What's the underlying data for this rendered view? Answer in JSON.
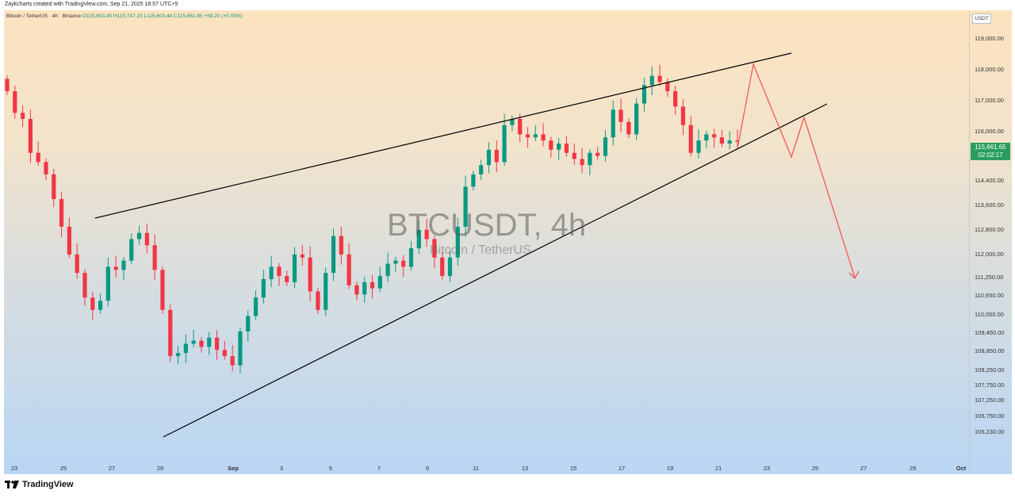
{
  "credit": "Zaykcharts created with TradingView.com, Sep 21, 2025 18:57 UTC+5",
  "legend": {
    "symbol": "Bitcoin / TetherUS · 4h · Binance",
    "ohlc": "O115,603.45 H115,747.23 L115,603.44 C115,661.65 +58.20 (+0.05%)"
  },
  "currency": "USDT",
  "last_price": "115,661.65",
  "countdown": "02:02:17",
  "watermark": {
    "main": "BTCUSDT, 4h",
    "sub": "Bitcoin / TetherUS"
  },
  "brand": "TradingView",
  "colors": {
    "up": "#089981",
    "down": "#f23645",
    "projection": "#f05a5a",
    "trendline": "#000000"
  },
  "chart_data": {
    "type": "candlestick",
    "symbol": "BTCUSDT",
    "interval": "4h",
    "y_ticks": [
      "119,000.00",
      "118,000.00",
      "117,000.00",
      "116,000.00",
      "115,200.00",
      "114,400.00",
      "113,600.00",
      "112,800.00",
      "112,000.00",
      "111,250.00",
      "110,650.00",
      "110,050.00",
      "109,450.00",
      "108,850.00",
      "108,250.00",
      "107,750.00",
      "107,250.00",
      "106,750.00",
      "106,230.00"
    ],
    "x_ticks": [
      "23",
      "25",
      "27",
      "29",
      "Sep",
      "3",
      "5",
      "7",
      "9",
      "11",
      "13",
      "15",
      "17",
      "19",
      "21",
      "23",
      "25",
      "27",
      "29",
      "Oct"
    ],
    "candles_close_path": [
      117300,
      116600,
      116400,
      115300,
      115000,
      114600,
      113800,
      112900,
      112000,
      111400,
      110600,
      110200,
      110500,
      111600,
      111500,
      111800,
      112500,
      112700,
      112300,
      111500,
      110200,
      108700,
      108800,
      109100,
      109200,
      109000,
      109300,
      108900,
      108700,
      108400,
      109500,
      110000,
      110600,
      111200,
      111600,
      111300,
      111100,
      112000,
      111900,
      110800,
      110200,
      111400,
      112600,
      112000,
      111000,
      110700,
      111100,
      110900,
      111300,
      111700,
      111800,
      111600,
      112200,
      112800,
      112500,
      111900,
      111300,
      111900,
      112900,
      114200,
      114600,
      114900,
      115400,
      115000,
      116200,
      116400,
      115900,
      115800,
      115900,
      115700,
      115400,
      115600,
      115300,
      115100,
      114900,
      115300,
      115200,
      115800,
      116700,
      116300,
      115900,
      116900,
      117500,
      117800,
      117600,
      117300,
      116800,
      116200,
      115300,
      115700,
      115900,
      115800,
      115600,
      115700,
      115661.65
    ]
  },
  "annotations": {
    "upper_trendline": {
      "start": "Aug 26",
      "end": "Sep 25"
    },
    "lower_trendline": {
      "start": "Aug 29",
      "end": "Sep 25"
    },
    "projection_path_prices": [
      115661.65,
      118400,
      115200,
      116800,
      111300
    ]
  }
}
